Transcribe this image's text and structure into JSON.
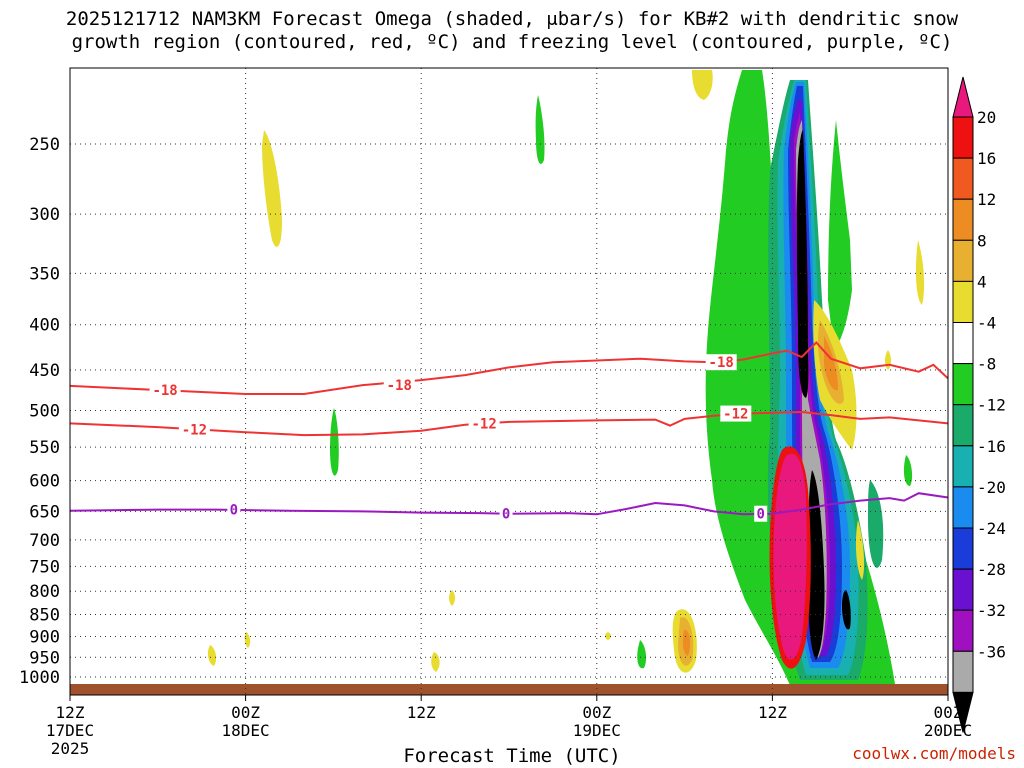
{
  "title_line1": "2025121712 NAM3KM Forecast Omega (shaded, μbar/s) for KB#2 with dendritic snow",
  "title_line2": "growth region (contoured, red, ºC) and freezing level (contoured, purple, ºC)",
  "credit": "coolwx.com/models",
  "chart_data": {
    "type": "heatmap",
    "xlabel": "Forecast Time (UTC)",
    "ylabel": "",
    "x_range_hours": [
      0,
      60
    ],
    "ylim_hpa": [
      1030,
      200
    ],
    "x_ticks": [
      {
        "hour": 0,
        "l1": "12Z",
        "l2": "17DEC",
        "l3": "2025"
      },
      {
        "hour": 12,
        "l1": "00Z",
        "l2": "18DEC",
        "l3": ""
      },
      {
        "hour": 24,
        "l1": "12Z",
        "l2": "",
        "l3": ""
      },
      {
        "hour": 36,
        "l1": "00Z",
        "l2": "19DEC",
        "l3": ""
      },
      {
        "hour": 48,
        "l1": "12Z",
        "l2": "",
        "l3": ""
      },
      {
        "hour": 60,
        "l1": "00Z",
        "l2": "20DEC",
        "l3": ""
      }
    ],
    "y_ticks": [
      250,
      300,
      350,
      400,
      450,
      500,
      550,
      600,
      650,
      700,
      750,
      800,
      850,
      900,
      950,
      1000
    ],
    "colorbar": {
      "labels": [
        "20",
        "16",
        "12",
        "8",
        "4",
        "-4",
        "-8",
        "-12",
        "-16",
        "-20",
        "-24",
        "-28",
        "-32",
        "-36"
      ],
      "bins": [
        {
          "color": "#ee1111"
        },
        {
          "color": "#f05a20"
        },
        {
          "color": "#ee8c24"
        },
        {
          "color": "#e8b030"
        },
        {
          "color": "#e8dc30"
        },
        {
          "color": "#ffffff"
        },
        {
          "color": "#22cc22"
        },
        {
          "color": "#1aaa6a"
        },
        {
          "color": "#18b0b0"
        },
        {
          "color": "#1a8cf0"
        },
        {
          "color": "#1a3cd8"
        },
        {
          "color": "#6a10d0"
        },
        {
          "color": "#a010c0"
        },
        {
          "color": "#aaaaaa"
        }
      ],
      "top_color": "#e8187c",
      "bottom_color": "#000000"
    },
    "contours": [
      {
        "level": "-18",
        "color": "#ee3333",
        "points": [
          [
            0,
            469
          ],
          [
            6,
            474
          ],
          [
            12,
            479
          ],
          [
            16,
            479
          ],
          [
            20,
            468
          ],
          [
            24,
            462
          ],
          [
            27,
            456
          ],
          [
            30,
            447
          ],
          [
            33,
            441
          ],
          [
            36,
            439
          ],
          [
            39,
            437
          ],
          [
            42,
            440
          ],
          [
            44,
            441
          ],
          [
            46,
            438
          ],
          [
            48,
            431
          ],
          [
            49,
            428
          ],
          [
            50,
            435
          ],
          [
            51,
            419
          ],
          [
            52,
            437
          ],
          [
            54,
            448
          ],
          [
            56,
            444
          ],
          [
            58,
            452
          ],
          [
            59,
            444
          ],
          [
            60,
            460
          ]
        ],
        "labels": [
          {
            "hour": 6.5,
            "hpa": 474
          },
          {
            "hour": 22.5,
            "hpa": 468
          },
          {
            "hour": 44.5,
            "hpa": 441
          }
        ]
      },
      {
        "level": "-12",
        "color": "#ee3333",
        "points": [
          [
            0,
            517
          ],
          [
            6,
            522
          ],
          [
            12,
            529
          ],
          [
            16,
            533
          ],
          [
            20,
            532
          ],
          [
            24,
            527
          ],
          [
            27,
            519
          ],
          [
            30,
            515
          ],
          [
            33,
            514
          ],
          [
            36,
            513
          ],
          [
            40,
            512
          ],
          [
            41,
            520
          ],
          [
            42,
            511
          ],
          [
            44,
            507
          ],
          [
            46,
            504
          ],
          [
            48,
            503
          ],
          [
            50,
            502
          ],
          [
            52,
            506
          ],
          [
            54,
            511
          ],
          [
            56,
            509
          ],
          [
            58,
            513
          ],
          [
            60,
            517
          ]
        ],
        "labels": [
          {
            "hour": 8.5,
            "hpa": 525
          },
          {
            "hour": 28.3,
            "hpa": 517
          },
          {
            "hour": 45.5,
            "hpa": 504
          }
        ]
      },
      {
        "level": "0",
        "color": "#9a1ac0",
        "points": [
          [
            0,
            649
          ],
          [
            6,
            647
          ],
          [
            10,
            647
          ],
          [
            15,
            649
          ],
          [
            20,
            650
          ],
          [
            24,
            652
          ],
          [
            28,
            653
          ],
          [
            30,
            654
          ],
          [
            34,
            653
          ],
          [
            36,
            655
          ],
          [
            38,
            646
          ],
          [
            40,
            636
          ],
          [
            42,
            640
          ],
          [
            44,
            650
          ],
          [
            46,
            655
          ],
          [
            48,
            654
          ],
          [
            50,
            647
          ],
          [
            52,
            638
          ],
          [
            54,
            632
          ],
          [
            56,
            628
          ],
          [
            57,
            632
          ],
          [
            58,
            620
          ],
          [
            60,
            627
          ]
        ],
        "labels": [
          {
            "hour": 11.2,
            "hpa": 647
          },
          {
            "hour": 29.8,
            "hpa": 654
          },
          {
            "hour": 47.2,
            "hpa": 654
          }
        ]
      }
    ]
  }
}
